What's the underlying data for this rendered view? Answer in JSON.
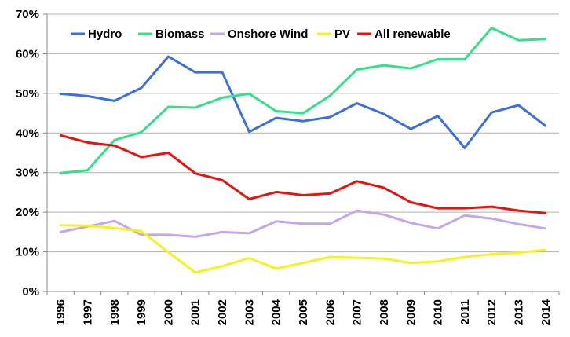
{
  "chart_data": {
    "type": "line",
    "title": "",
    "xlabel": "",
    "ylabel": "",
    "categories": [
      "1996",
      "1997",
      "1998",
      "1999",
      "2000",
      "2001",
      "2002",
      "2003",
      "2004",
      "2005",
      "2006",
      "2007",
      "2008",
      "2009",
      "2010",
      "2011",
      "2012",
      "2013",
      "2014"
    ],
    "ylim": [
      0,
      70
    ],
    "y_ticks": [
      "0%",
      "10%",
      "20%",
      "30%",
      "40%",
      "50%",
      "60%",
      "70%"
    ],
    "y_tick_values": [
      0,
      10,
      20,
      30,
      40,
      50,
      60,
      70
    ],
    "grid": "horizontal",
    "legend_position": "top",
    "series": [
      {
        "name": "Hydro",
        "color": "#3b6fdc",
        "values": [
          49.9,
          49.3,
          48.1,
          51.4,
          59.3,
          55.3,
          55.3,
          40.3,
          43.8,
          43.0,
          44.0,
          47.5,
          44.8,
          41.0,
          44.3,
          36.2,
          45.2,
          47.0,
          41.8
        ]
      },
      {
        "name": "Biomass",
        "color": "#34e08a",
        "values": [
          29.9,
          30.6,
          38.2,
          40.2,
          46.6,
          46.4,
          48.9,
          49.9,
          45.5,
          45.0,
          49.4,
          56.0,
          57.1,
          56.3,
          58.6,
          58.6,
          66.5,
          63.4,
          63.7
        ]
      },
      {
        "name": "Onshore Wind",
        "color": "#c3a6ec",
        "values": [
          15.0,
          16.4,
          17.8,
          14.3,
          14.3,
          13.8,
          15.0,
          14.7,
          17.7,
          17.1,
          17.1,
          20.4,
          19.4,
          17.3,
          15.9,
          19.2,
          18.4,
          17.0,
          15.9
        ]
      },
      {
        "name": "PV",
        "color": "#f5f21c",
        "values": [
          16.7,
          16.6,
          16.0,
          15.2,
          9.9,
          4.8,
          6.4,
          8.4,
          5.8,
          7.2,
          8.7,
          8.5,
          8.3,
          7.2,
          7.6,
          8.7,
          9.4,
          9.8,
          10.5
        ]
      },
      {
        "name": "All renewable",
        "color": "#e8120f",
        "values": [
          39.4,
          37.6,
          36.8,
          33.9,
          35.0,
          29.8,
          28.1,
          23.3,
          25.1,
          24.3,
          24.7,
          27.8,
          26.2,
          22.5,
          21.0,
          21.0,
          21.4,
          20.4,
          19.8
        ]
      }
    ]
  }
}
